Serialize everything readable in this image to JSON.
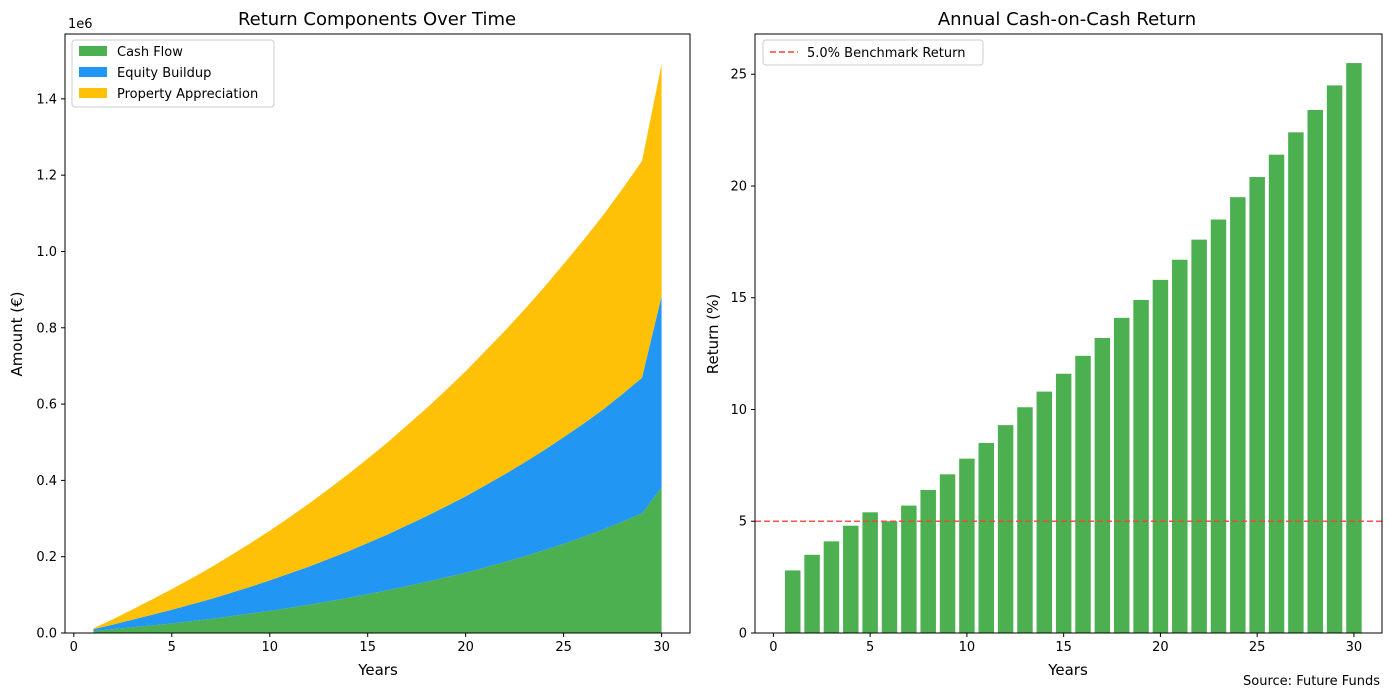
{
  "source_text": "Source: Future Funds",
  "colors": {
    "cash_flow": "#4caf50",
    "equity": "#2196f3",
    "appreciation": "#ffc107",
    "benchmark": "#f44336",
    "bars": "#4caf50"
  },
  "chart_data": [
    {
      "type": "area",
      "stacked": true,
      "title": "Return Components Over Time",
      "xlabel": "Years",
      "ylabel": "Amount (€)",
      "y_offset_text": "1e6",
      "xlim": [
        -0.45,
        31.45
      ],
      "ylim": [
        0,
        1.57
      ],
      "xticks": [
        0,
        5,
        10,
        15,
        20,
        25,
        30
      ],
      "yticks": [
        0.0,
        0.2,
        0.4,
        0.6,
        0.8,
        1.0,
        1.2,
        1.4
      ],
      "ytick_labels": [
        "0.0",
        "0.2",
        "0.4",
        "0.6",
        "0.8",
        "1.0",
        "1.2",
        "1.4"
      ],
      "legend_position": "upper-left",
      "x": [
        1,
        2,
        3,
        4,
        5,
        6,
        7,
        8,
        9,
        10,
        11,
        12,
        13,
        14,
        15,
        16,
        17,
        18,
        19,
        20,
        21,
        22,
        23,
        24,
        25,
        26,
        27,
        28,
        29,
        30
      ],
      "series": [
        {
          "name": "Cash Flow",
          "color_key": "cash_flow",
          "values": [
            0.005,
            0.01,
            0.015,
            0.02,
            0.025,
            0.031,
            0.037,
            0.044,
            0.051,
            0.058,
            0.066,
            0.074,
            0.083,
            0.092,
            0.102,
            0.112,
            0.123,
            0.134,
            0.146,
            0.158,
            0.172,
            0.186,
            0.201,
            0.217,
            0.234,
            0.252,
            0.271,
            0.292,
            0.314,
            0.381
          ]
        },
        {
          "name": "Equity Buildup",
          "color_key": "equity",
          "values": [
            0.005,
            0.012,
            0.02,
            0.028,
            0.036,
            0.044,
            0.052,
            0.061,
            0.07,
            0.08,
            0.09,
            0.1,
            0.111,
            0.122,
            0.134,
            0.146,
            0.159,
            0.172,
            0.186,
            0.2,
            0.215,
            0.23,
            0.246,
            0.262,
            0.279,
            0.296,
            0.314,
            0.334,
            0.355,
            0.502
          ]
        },
        {
          "name": "Property Appreciation",
          "color_key": "appreciation",
          "values": [
            0.002,
            0.014,
            0.027,
            0.04,
            0.054,
            0.068,
            0.083,
            0.098,
            0.114,
            0.13,
            0.147,
            0.165,
            0.183,
            0.202,
            0.221,
            0.241,
            0.262,
            0.283,
            0.305,
            0.328,
            0.352,
            0.376,
            0.401,
            0.427,
            0.454,
            0.481,
            0.509,
            0.538,
            0.568,
            0.608
          ]
        }
      ]
    },
    {
      "type": "bar",
      "title": "Annual Cash-on-Cash Return",
      "xlabel": "Years",
      "ylabel": "Return (%)",
      "xlim": [
        -0.95,
        31.45
      ],
      "ylim": [
        0,
        26.8
      ],
      "xticks": [
        0,
        5,
        10,
        15,
        20,
        25,
        30
      ],
      "yticks": [
        0,
        5,
        10,
        15,
        20,
        25
      ],
      "legend_position": "upper-left",
      "x": [
        1,
        2,
        3,
        4,
        5,
        6,
        7,
        8,
        9,
        10,
        11,
        12,
        13,
        14,
        15,
        16,
        17,
        18,
        19,
        20,
        21,
        22,
        23,
        24,
        25,
        26,
        27,
        28,
        29,
        30
      ],
      "values": [
        2.8,
        3.5,
        4.1,
        4.8,
        5.4,
        5.0,
        5.7,
        6.4,
        7.1,
        7.8,
        8.5,
        9.3,
        10.1,
        10.8,
        11.6,
        12.4,
        13.2,
        14.1,
        14.9,
        15.8,
        16.7,
        17.6,
        18.5,
        19.5,
        20.4,
        21.4,
        22.4,
        23.4,
        24.5,
        25.5
      ],
      "benchmark": {
        "label": "5.0% Benchmark Return",
        "value": 5.0
      }
    }
  ]
}
